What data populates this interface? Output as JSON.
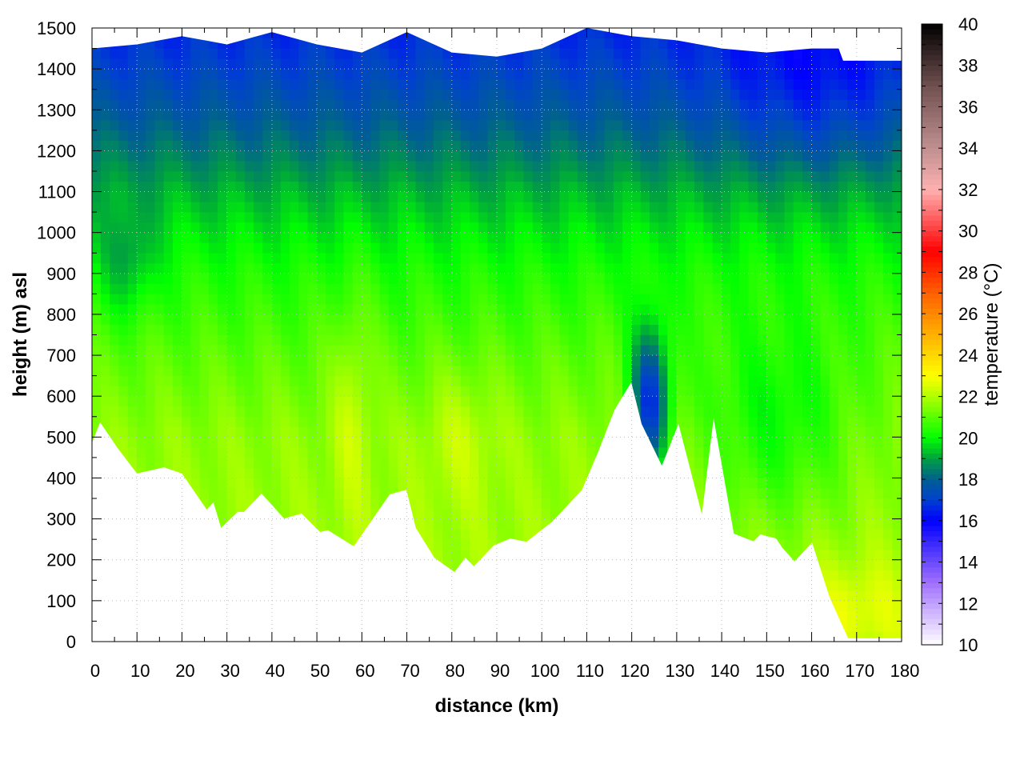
{
  "chart_data": {
    "type": "heatmap",
    "title": "",
    "xlabel": "distance (km)",
    "ylabel": "height (m) asl",
    "colorbar_label": "temperature (°C)",
    "xlim": [
      0,
      180
    ],
    "ylim": [
      0,
      1500
    ],
    "clim": [
      10,
      40
    ],
    "xticks": [
      0,
      10,
      20,
      30,
      40,
      50,
      60,
      70,
      80,
      90,
      100,
      110,
      120,
      130,
      140,
      150,
      160,
      170,
      180
    ],
    "yticks": [
      0,
      100,
      200,
      300,
      400,
      500,
      600,
      700,
      800,
      900,
      1000,
      1100,
      1200,
      1300,
      1400,
      1500
    ],
    "cticks": [
      10,
      12,
      14,
      16,
      18,
      20,
      22,
      24,
      26,
      28,
      30,
      32,
      34,
      36,
      38,
      40
    ],
    "grid": true,
    "colormap": [
      {
        "v": 10,
        "c": "#ffffff"
      },
      {
        "v": 13,
        "c": "#a070ff"
      },
      {
        "v": 16,
        "c": "#0000ff"
      },
      {
        "v": 17,
        "c": "#0040d0"
      },
      {
        "v": 18,
        "c": "#006090"
      },
      {
        "v": 19,
        "c": "#00a040"
      },
      {
        "v": 20,
        "c": "#00ff00"
      },
      {
        "v": 22,
        "c": "#b0ff00"
      },
      {
        "v": 23,
        "c": "#ffff00"
      },
      {
        "v": 25,
        "c": "#ffb000"
      },
      {
        "v": 27,
        "c": "#ff6000"
      },
      {
        "v": 29,
        "c": "#ff0000"
      },
      {
        "v": 32,
        "c": "#ffb0b0"
      },
      {
        "v": 34,
        "c": "#c09090"
      },
      {
        "v": 37,
        "c": "#705050"
      },
      {
        "v": 40,
        "c": "#000000"
      }
    ],
    "terrain": {
      "distance_km": [
        0,
        1.8,
        5.7,
        10,
        16,
        20,
        25.5,
        27,
        28.7,
        32.4,
        33.8,
        37.7,
        42.7,
        46.6,
        50.7,
        52.5,
        58.2,
        66.2,
        69.9,
        72,
        76.1,
        80.6,
        83,
        84.9,
        89.3,
        93,
        96.6,
        102.3,
        108.9,
        112.4,
        116.2,
        119.9,
        122.2,
        126.7,
        130.4,
        135.6,
        138.2,
        142.7,
        147.1,
        148.6,
        152.1,
        153.5,
        156.2,
        160.1,
        164,
        168.1,
        180
      ],
      "ground_height_m": [
        486,
        536,
        473,
        411,
        426,
        411,
        323,
        340,
        278,
        317,
        317,
        362,
        301,
        313,
        268,
        272,
        233,
        360,
        371,
        278,
        205,
        170,
        205,
        184,
        235,
        252,
        244,
        293,
        370,
        460,
        567,
        634,
        532,
        430,
        532,
        311,
        546,
        264,
        245,
        262,
        252,
        229,
        196,
        242,
        108,
        8,
        8
      ]
    },
    "data_top": {
      "distance_km": [
        0,
        10,
        20,
        30,
        40,
        50,
        60,
        70,
        80,
        90,
        100,
        110,
        120,
        130,
        140,
        150,
        160,
        166,
        167,
        180
      ],
      "top_height_m": [
        1450,
        1460,
        1480,
        1460,
        1490,
        1460,
        1440,
        1490,
        1440,
        1430,
        1450,
        1500,
        1480,
        1470,
        1450,
        1440,
        1450,
        1450,
        1420,
        1420
      ]
    },
    "temperature_profile": {
      "height_m": [
        0,
        500,
        700,
        900,
        1000,
        1100,
        1200,
        1300,
        1400,
        1500
      ],
      "temperature_c": [
        22,
        21.6,
        21,
        20.3,
        19.8,
        19.2,
        18.4,
        17.7,
        17.1,
        16.6
      ]
    },
    "anomalies": [
      {
        "distance_km": 124,
        "height_m": 580,
        "dT": -4.5,
        "sx": 3,
        "sh": 130
      },
      {
        "distance_km": 152,
        "height_m": 520,
        "dT": -1.4,
        "sx": 12,
        "sh": 160
      },
      {
        "distance_km": 8,
        "height_m": 930,
        "dT": -1.2,
        "sx": 4,
        "sh": 90
      },
      {
        "distance_km": 58,
        "height_m": 600,
        "dT": 0.8,
        "sx": 3,
        "sh": 200
      },
      {
        "distance_km": 82,
        "height_m": 500,
        "dT": 0.6,
        "sx": 6,
        "sh": 120
      },
      {
        "distance_km": 170,
        "height_m": 80,
        "dT": 0.8,
        "sx": 8,
        "sh": 80
      },
      {
        "distance_km": 160,
        "height_m": 1350,
        "dT": -1.0,
        "sx": 15,
        "sh": 150
      }
    ]
  }
}
